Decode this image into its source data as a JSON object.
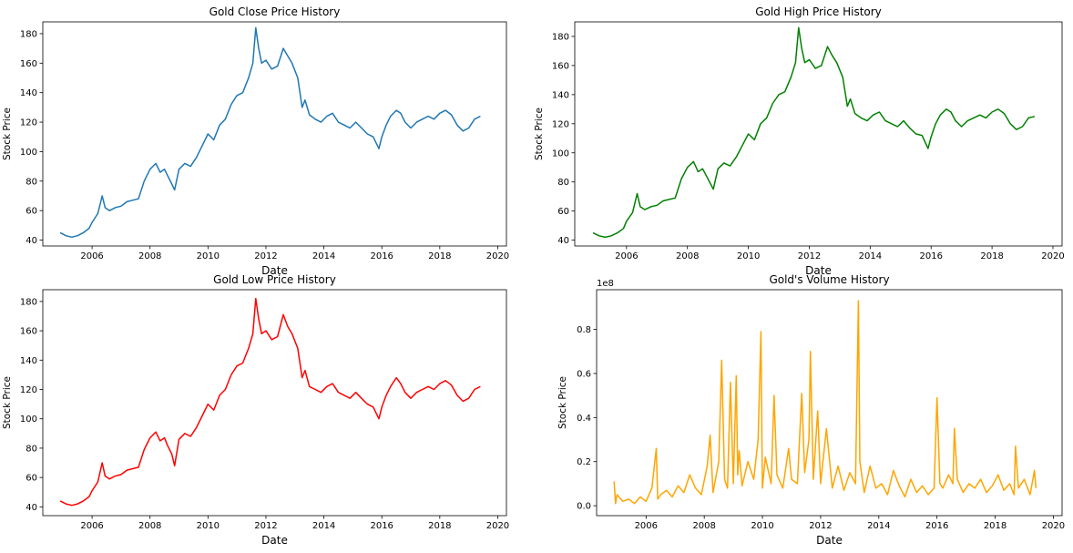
{
  "chart_data": [
    {
      "type": "line",
      "title": "Gold Close Price History",
      "xlabel": "Date",
      "ylabel": "Stock Price",
      "color": "#1f77b4",
      "xlim": [
        2004.3,
        2020.3
      ],
      "ylim": [
        36,
        188
      ],
      "xticks": [
        2006,
        2008,
        2010,
        2012,
        2014,
        2016,
        2018,
        2020
      ],
      "yticks": [
        40,
        60,
        80,
        100,
        120,
        140,
        160,
        180
      ],
      "ytick_labels": [
        "40",
        "60",
        "80",
        "100",
        "120",
        "140",
        "160",
        "180"
      ],
      "exponent_label": "",
      "series": [
        {
          "x": [
            2004.9,
            2005.1,
            2005.3,
            2005.5,
            2005.7,
            2005.9,
            2006.0,
            2006.2,
            2006.35,
            2006.45,
            2006.6,
            2006.8,
            2007.0,
            2007.2,
            2007.4,
            2007.6,
            2007.8,
            2008.0,
            2008.2,
            2008.35,
            2008.5,
            2008.6,
            2008.75,
            2008.85,
            2009.0,
            2009.2,
            2009.4,
            2009.6,
            2009.8,
            2010.0,
            2010.2,
            2010.4,
            2010.6,
            2010.8,
            2011.0,
            2011.2,
            2011.4,
            2011.55,
            2011.65,
            2011.75,
            2011.85,
            2012.0,
            2012.2,
            2012.4,
            2012.6,
            2012.75,
            2012.9,
            2013.1,
            2013.25,
            2013.35,
            2013.5,
            2013.7,
            2013.9,
            2014.1,
            2014.3,
            2014.5,
            2014.7,
            2014.9,
            2015.1,
            2015.3,
            2015.5,
            2015.7,
            2015.9,
            2016.0,
            2016.15,
            2016.3,
            2016.5,
            2016.65,
            2016.8,
            2017.0,
            2017.2,
            2017.4,
            2017.6,
            2017.8,
            2018.0,
            2018.2,
            2018.4,
            2018.6,
            2018.8,
            2019.0,
            2019.2,
            2019.4
          ],
          "y": [
            45,
            43,
            42,
            43,
            45,
            48,
            52,
            58,
            70,
            62,
            60,
            62,
            63,
            66,
            67,
            68,
            80,
            88,
            92,
            86,
            88,
            84,
            78,
            74,
            88,
            92,
            90,
            96,
            104,
            112,
            108,
            118,
            122,
            132,
            138,
            140,
            150,
            160,
            184,
            170,
            160,
            162,
            156,
            158,
            170,
            165,
            160,
            150,
            130,
            135,
            125,
            122,
            120,
            124,
            126,
            120,
            118,
            116,
            120,
            116,
            112,
            110,
            102,
            110,
            118,
            124,
            128,
            126,
            120,
            116,
            120,
            122,
            124,
            122,
            126,
            128,
            125,
            118,
            114,
            116,
            122,
            124
          ]
        }
      ]
    },
    {
      "type": "line",
      "title": "Gold High Price History",
      "xlabel": "Date",
      "ylabel": "Stock Price",
      "color": "#008000",
      "xlim": [
        2004.3,
        2020.3
      ],
      "ylim": [
        36,
        190
      ],
      "xticks": [
        2006,
        2008,
        2010,
        2012,
        2014,
        2016,
        2018,
        2020
      ],
      "yticks": [
        40,
        60,
        80,
        100,
        120,
        140,
        160,
        180
      ],
      "ytick_labels": [
        "40",
        "60",
        "80",
        "100",
        "120",
        "140",
        "160",
        "180"
      ],
      "exponent_label": "",
      "series": [
        {
          "x": [
            2004.9,
            2005.1,
            2005.3,
            2005.5,
            2005.7,
            2005.9,
            2006.0,
            2006.2,
            2006.35,
            2006.45,
            2006.6,
            2006.8,
            2007.0,
            2007.2,
            2007.4,
            2007.6,
            2007.8,
            2008.0,
            2008.2,
            2008.35,
            2008.5,
            2008.6,
            2008.75,
            2008.85,
            2009.0,
            2009.2,
            2009.4,
            2009.6,
            2009.8,
            2010.0,
            2010.2,
            2010.4,
            2010.6,
            2010.8,
            2011.0,
            2011.2,
            2011.4,
            2011.55,
            2011.65,
            2011.75,
            2011.85,
            2012.0,
            2012.2,
            2012.4,
            2012.6,
            2012.75,
            2012.9,
            2013.1,
            2013.25,
            2013.35,
            2013.5,
            2013.7,
            2013.9,
            2014.1,
            2014.3,
            2014.5,
            2014.7,
            2014.9,
            2015.1,
            2015.3,
            2015.5,
            2015.7,
            2015.9,
            2016.0,
            2016.15,
            2016.3,
            2016.5,
            2016.65,
            2016.8,
            2017.0,
            2017.2,
            2017.4,
            2017.6,
            2017.8,
            2018.0,
            2018.2,
            2018.4,
            2018.6,
            2018.8,
            2019.0,
            2019.2,
            2019.4
          ],
          "y": [
            45,
            43,
            42,
            43,
            45,
            48,
            53,
            59,
            72,
            63,
            61,
            63,
            64,
            67,
            68,
            69,
            82,
            90,
            94,
            87,
            89,
            85,
            79,
            75,
            89,
            93,
            91,
            97,
            105,
            113,
            109,
            120,
            124,
            134,
            140,
            142,
            152,
            162,
            186,
            172,
            162,
            164,
            158,
            160,
            173,
            167,
            162,
            152,
            132,
            137,
            127,
            124,
            122,
            126,
            128,
            122,
            120,
            118,
            122,
            117,
            113,
            112,
            103,
            111,
            120,
            126,
            130,
            128,
            122,
            118,
            122,
            124,
            126,
            124,
            128,
            130,
            127,
            120,
            116,
            118,
            124,
            125
          ]
        }
      ]
    },
    {
      "type": "line",
      "title": "Gold Low Price History",
      "xlabel": "Date",
      "ylabel": "Stock Price",
      "color": "#ff0000",
      "xlim": [
        2004.3,
        2020.3
      ],
      "ylim": [
        34,
        188
      ],
      "xticks": [
        2006,
        2008,
        2010,
        2012,
        2014,
        2016,
        2018,
        2020
      ],
      "yticks": [
        40,
        60,
        80,
        100,
        120,
        140,
        160,
        180
      ],
      "ytick_labels": [
        "40",
        "60",
        "80",
        "100",
        "120",
        "140",
        "160",
        "180"
      ],
      "exponent_label": "",
      "series": [
        {
          "x": [
            2004.9,
            2005.1,
            2005.3,
            2005.5,
            2005.7,
            2005.9,
            2006.0,
            2006.2,
            2006.35,
            2006.45,
            2006.6,
            2006.8,
            2007.0,
            2007.2,
            2007.4,
            2007.6,
            2007.8,
            2008.0,
            2008.2,
            2008.35,
            2008.5,
            2008.6,
            2008.75,
            2008.85,
            2009.0,
            2009.2,
            2009.4,
            2009.6,
            2009.8,
            2010.0,
            2010.2,
            2010.4,
            2010.6,
            2010.8,
            2011.0,
            2011.2,
            2011.4,
            2011.55,
            2011.65,
            2011.75,
            2011.85,
            2012.0,
            2012.2,
            2012.4,
            2012.6,
            2012.75,
            2012.9,
            2013.1,
            2013.25,
            2013.35,
            2013.5,
            2013.7,
            2013.9,
            2014.1,
            2014.3,
            2014.5,
            2014.7,
            2014.9,
            2015.1,
            2015.3,
            2015.5,
            2015.7,
            2015.9,
            2016.0,
            2016.15,
            2016.3,
            2016.5,
            2016.65,
            2016.8,
            2017.0,
            2017.2,
            2017.4,
            2017.6,
            2017.8,
            2018.0,
            2018.2,
            2018.4,
            2018.6,
            2018.8,
            2019.0,
            2019.2,
            2019.4
          ],
          "y": [
            44,
            42,
            41,
            42,
            44,
            47,
            51,
            57,
            70,
            61,
            59,
            61,
            62,
            65,
            66,
            67,
            79,
            87,
            91,
            85,
            87,
            82,
            76,
            68,
            86,
            90,
            88,
            94,
            102,
            110,
            106,
            116,
            120,
            130,
            136,
            138,
            148,
            158,
            182,
            168,
            158,
            160,
            154,
            156,
            171,
            163,
            158,
            148,
            128,
            133,
            122,
            120,
            118,
            122,
            124,
            118,
            116,
            114,
            118,
            114,
            110,
            108,
            100,
            108,
            116,
            122,
            128,
            124,
            118,
            114,
            118,
            120,
            122,
            120,
            124,
            126,
            123,
            116,
            112,
            114,
            120,
            122
          ]
        }
      ]
    },
    {
      "type": "line",
      "title": "Gold's Volume History",
      "xlabel": "Date",
      "ylabel": "Stock Price",
      "color": "#ffa500",
      "xlim": [
        2004.3,
        2020.3
      ],
      "ylim": [
        -0.045,
        0.98
      ],
      "xticks": [
        2006,
        2008,
        2010,
        2012,
        2014,
        2016,
        2018,
        2020
      ],
      "yticks": [
        0.0,
        0.2,
        0.4,
        0.6,
        0.8
      ],
      "ytick_labels": [
        "0.0",
        "0.2",
        "0.4",
        "0.6",
        "0.8"
      ],
      "exponent_label": "1e8",
      "series": [
        {
          "x": [
            2004.9,
            2004.95,
            2005.0,
            2005.2,
            2005.4,
            2005.6,
            2005.8,
            2006.0,
            2006.2,
            2006.35,
            2006.4,
            2006.5,
            2006.7,
            2006.9,
            2007.1,
            2007.3,
            2007.5,
            2007.7,
            2007.9,
            2008.1,
            2008.2,
            2008.3,
            2008.5,
            2008.6,
            2008.7,
            2008.8,
            2008.9,
            2009.0,
            2009.1,
            2009.15,
            2009.2,
            2009.3,
            2009.5,
            2009.7,
            2009.85,
            2009.95,
            2010.0,
            2010.1,
            2010.3,
            2010.4,
            2010.5,
            2010.7,
            2010.9,
            2011.0,
            2011.2,
            2011.35,
            2011.45,
            2011.6,
            2011.65,
            2011.75,
            2011.9,
            2012.0,
            2012.2,
            2012.4,
            2012.6,
            2012.8,
            2013.0,
            2013.2,
            2013.3,
            2013.35,
            2013.5,
            2013.7,
            2013.9,
            2014.1,
            2014.3,
            2014.5,
            2014.7,
            2014.9,
            2015.1,
            2015.3,
            2015.5,
            2015.7,
            2015.9,
            2016.0,
            2016.1,
            2016.2,
            2016.4,
            2016.55,
            2016.6,
            2016.7,
            2016.9,
            2017.1,
            2017.3,
            2017.5,
            2017.7,
            2017.9,
            2018.1,
            2018.3,
            2018.5,
            2018.65,
            2018.7,
            2018.8,
            2019.0,
            2019.2,
            2019.35,
            2019.4
          ],
          "y": [
            0.11,
            0.01,
            0.05,
            0.02,
            0.03,
            0.01,
            0.04,
            0.02,
            0.08,
            0.26,
            0.03,
            0.05,
            0.07,
            0.04,
            0.09,
            0.06,
            0.14,
            0.08,
            0.05,
            0.18,
            0.32,
            0.06,
            0.2,
            0.66,
            0.12,
            0.08,
            0.56,
            0.1,
            0.59,
            0.14,
            0.25,
            0.09,
            0.2,
            0.12,
            0.3,
            0.79,
            0.08,
            0.22,
            0.1,
            0.5,
            0.14,
            0.08,
            0.26,
            0.12,
            0.1,
            0.51,
            0.15,
            0.3,
            0.7,
            0.12,
            0.43,
            0.1,
            0.35,
            0.08,
            0.18,
            0.07,
            0.15,
            0.1,
            0.93,
            0.2,
            0.06,
            0.18,
            0.08,
            0.1,
            0.05,
            0.16,
            0.09,
            0.04,
            0.12,
            0.06,
            0.09,
            0.05,
            0.08,
            0.49,
            0.1,
            0.08,
            0.14,
            0.1,
            0.35,
            0.12,
            0.06,
            0.1,
            0.08,
            0.12,
            0.06,
            0.09,
            0.14,
            0.07,
            0.1,
            0.05,
            0.27,
            0.08,
            0.12,
            0.05,
            0.16,
            0.08
          ]
        }
      ]
    }
  ]
}
